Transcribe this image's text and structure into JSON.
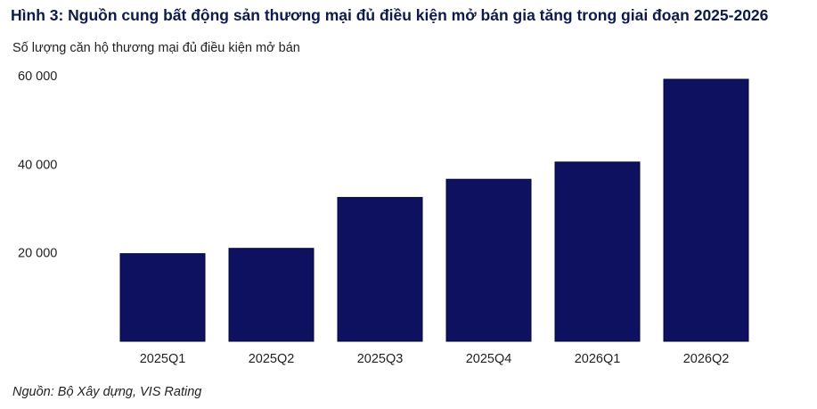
{
  "chart_data": {
    "type": "bar",
    "title": "Hình 3: Nguồn cung bất động sản thương mại đủ điều kiện mở bán gia tăng trong giai đoạn 2025-2026",
    "ylabel": "Số lượng căn hộ thương mại đủ điều kiện mở bán",
    "xlabel": "",
    "categories": [
      "2025Q1",
      "2025Q2",
      "2025Q3",
      "2025Q4",
      "2026Q1",
      "2026Q2"
    ],
    "values": [
      19800,
      21000,
      32500,
      36600,
      40500,
      59200
    ],
    "ylim": [
      0,
      60000
    ],
    "yticks": [
      20000,
      40000,
      60000
    ],
    "ytick_labels": [
      "20 000",
      "40 000",
      "60 000"
    ],
    "bar_color": "#0d1160",
    "grid": false,
    "legend": "none"
  },
  "source": "Nguồn: Bộ Xây dựng, VIS Rating"
}
